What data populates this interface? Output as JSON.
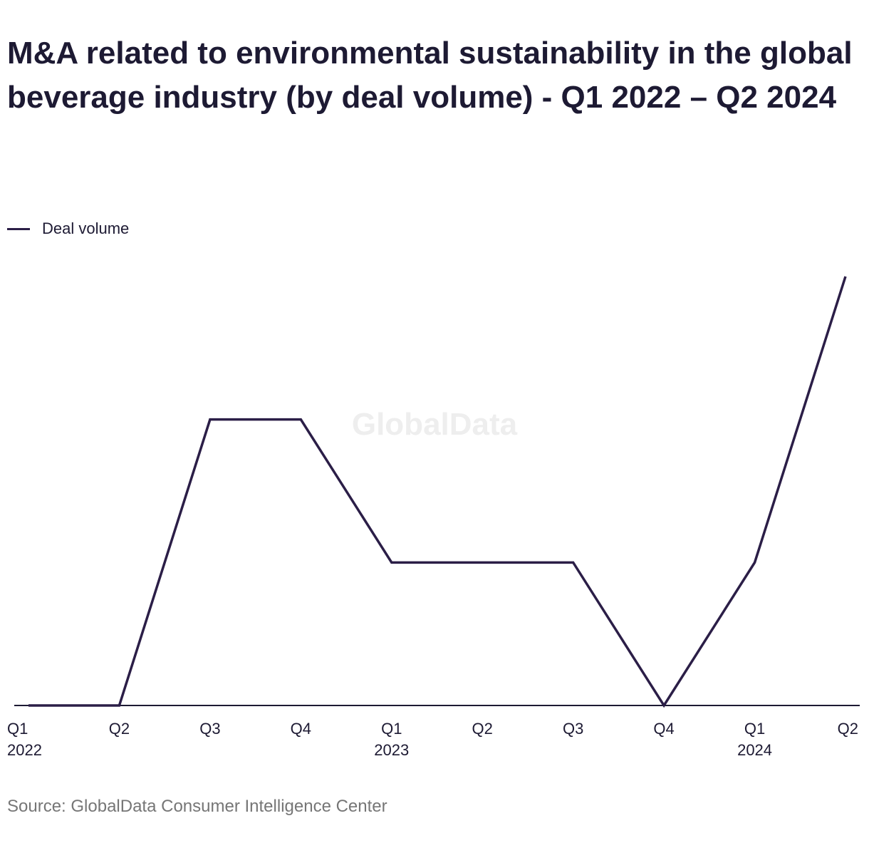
{
  "title": "M&A related to environmental sustainability in the global beverage industry (by deal volume) - Q1 2022 – Q2 2024",
  "watermark": "GlobalData",
  "source": "Source: GlobalData Consumer Intelligence Center",
  "colors": {
    "line": "#2b1e47",
    "axis": "#1d1a33",
    "text": "#1d1a33",
    "muted": "#767676",
    "watermark": "#eeeeee"
  },
  "chart_data": {
    "type": "line",
    "categories": [
      [
        "Q1",
        "2022"
      ],
      [
        "Q2",
        ""
      ],
      [
        "Q3",
        ""
      ],
      [
        "Q4",
        ""
      ],
      [
        "Q1",
        "2023"
      ],
      [
        "Q2",
        ""
      ],
      [
        "Q3",
        ""
      ],
      [
        "Q4",
        ""
      ],
      [
        "Q1",
        "2024"
      ],
      [
        "Q2",
        ""
      ]
    ],
    "series": [
      {
        "name": "Deal volume",
        "values": [
          0,
          0,
          2,
          2,
          1,
          1,
          1,
          0,
          1,
          3
        ]
      }
    ],
    "ylim": [
      0,
      3
    ],
    "y_axis_labels_shown": false,
    "grid": false,
    "legend": "top-left"
  }
}
